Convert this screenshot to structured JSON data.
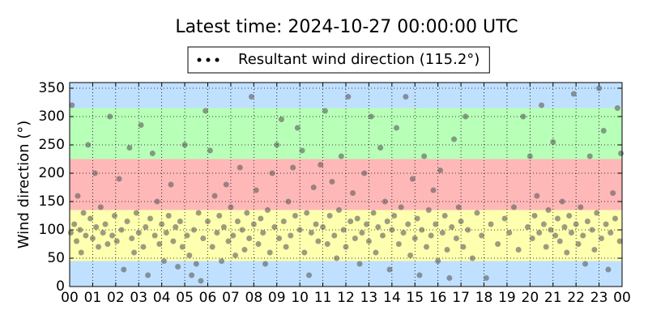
{
  "chart_data": {
    "type": "scatter",
    "title": "Latest time: 2024-10-27 00:00:00 UTC",
    "y_label": "Wind direction (°)",
    "legend": "upper center",
    "grid": true,
    "xlim": [
      0,
      24
    ],
    "ylim": [
      0,
      360
    ],
    "xticks": [
      {
        "value": 0,
        "label": "00"
      },
      {
        "value": 1,
        "label": "01"
      },
      {
        "value": 2,
        "label": "02"
      },
      {
        "value": 3,
        "label": "03"
      },
      {
        "value": 4,
        "label": "04"
      },
      {
        "value": 5,
        "label": "05"
      },
      {
        "value": 6,
        "label": "06"
      },
      {
        "value": 7,
        "label": "07"
      },
      {
        "value": 8,
        "label": "08"
      },
      {
        "value": 9,
        "label": "09"
      },
      {
        "value": 10,
        "label": "10"
      },
      {
        "value": 11,
        "label": "11"
      },
      {
        "value": 12,
        "label": "12"
      },
      {
        "value": 13,
        "label": "13"
      },
      {
        "value": 14,
        "label": "14"
      },
      {
        "value": 15,
        "label": "15"
      },
      {
        "value": 16,
        "label": "16"
      },
      {
        "value": 17,
        "label": "17"
      },
      {
        "value": 18,
        "label": "18"
      },
      {
        "value": 19,
        "label": "19"
      },
      {
        "value": 20,
        "label": "20"
      },
      {
        "value": 21,
        "label": "21"
      },
      {
        "value": 22,
        "label": "22"
      },
      {
        "value": 23,
        "label": "23"
      },
      {
        "value": 24,
        "label": "00"
      }
    ],
    "yticks": [
      0,
      50,
      100,
      150,
      200,
      250,
      300,
      350
    ],
    "bands": [
      {
        "from": 0,
        "to": 45,
        "color": "#c0e0ff"
      },
      {
        "from": 45,
        "to": 135,
        "color": "#ffffb0"
      },
      {
        "from": 135,
        "to": 225,
        "color": "#ffb8b8"
      },
      {
        "from": 225,
        "to": 315,
        "color": "#b8ffb8"
      },
      {
        "from": 315,
        "to": 360,
        "color": "#c0e0ff"
      }
    ],
    "series": [
      {
        "name": "Resultant wind direction (115.2°)",
        "color": "#5a5a5a",
        "x": [
          0.05,
          0.1,
          0.2,
          0.3,
          0.35,
          0.45,
          0.5,
          0.6,
          0.7,
          0.8,
          0.9,
          1.0,
          1.1,
          1.15,
          1.25,
          1.35,
          1.45,
          1.55,
          1.65,
          1.75,
          1.85,
          1.95,
          2.05,
          2.15,
          2.25,
          2.35,
          2.5,
          2.6,
          2.7,
          2.8,
          2.9,
          3.0,
          3.1,
          3.2,
          3.3,
          3.4,
          3.5,
          3.6,
          3.7,
          3.8,
          3.9,
          4.0,
          4.1,
          4.2,
          4.3,
          4.4,
          4.5,
          4.6,
          4.7,
          4.8,
          4.9,
          5.0,
          5.1,
          5.2,
          5.3,
          5.4,
          5.5,
          5.6,
          5.7,
          5.8,
          5.9,
          6.0,
          6.1,
          6.2,
          6.3,
          6.4,
          6.5,
          6.6,
          6.7,
          6.8,
          6.9,
          7.0,
          7.1,
          7.2,
          7.3,
          7.4,
          7.5,
          7.6,
          7.7,
          7.8,
          7.9,
          8.0,
          8.1,
          8.2,
          8.3,
          8.4,
          8.5,
          8.6,
          8.7,
          8.8,
          8.9,
          9.0,
          9.1,
          9.2,
          9.3,
          9.4,
          9.5,
          9.6,
          9.7,
          9.8,
          9.9,
          10.0,
          10.1,
          10.2,
          10.3,
          10.4,
          10.5,
          10.6,
          10.7,
          10.8,
          10.9,
          11.0,
          11.1,
          11.2,
          11.3,
          11.4,
          11.5,
          11.6,
          11.7,
          11.8,
          11.9,
          12.0,
          12.1,
          12.2,
          12.3,
          12.4,
          12.5,
          12.6,
          12.7,
          12.8,
          12.9,
          13.0,
          13.1,
          13.2,
          13.3,
          13.4,
          13.5,
          13.6,
          13.7,
          13.8,
          13.9,
          14.0,
          14.1,
          14.2,
          14.3,
          14.4,
          14.5,
          14.6,
          14.7,
          14.8,
          14.9,
          15.0,
          15.1,
          15.2,
          15.3,
          15.4,
          15.5,
          15.6,
          15.7,
          15.8,
          15.9,
          16.0,
          16.1,
          16.2,
          16.3,
          16.4,
          16.5,
          16.6,
          16.7,
          16.8,
          16.9,
          17.0,
          17.1,
          17.2,
          17.3,
          17.5,
          17.7,
          17.9,
          18.1,
          18.3,
          18.6,
          18.9,
          19.1,
          19.3,
          19.5,
          19.7,
          19.9,
          20.0,
          20.1,
          20.2,
          20.3,
          20.4,
          20.5,
          20.6,
          20.7,
          20.8,
          20.9,
          21.0,
          21.1,
          21.2,
          21.3,
          21.4,
          21.5,
          21.6,
          21.7,
          21.8,
          21.9,
          22.0,
          22.1,
          22.2,
          22.3,
          22.4,
          22.5,
          22.6,
          22.7,
          22.8,
          22.9,
          23.0,
          23.1,
          23.2,
          23.3,
          23.4,
          23.5,
          23.6,
          23.7,
          23.8,
          23.9,
          23.95
        ],
        "values": [
          95,
          320,
          110,
          80,
          160,
          100,
          60,
          130,
          90,
          250,
          120,
          85,
          200,
          105,
          70,
          140,
          95,
          110,
          75,
          300,
          90,
          125,
          80,
          190,
          100,
          30,
          115,
          245,
          85,
          60,
          130,
          95,
          285,
          70,
          105,
          20,
          120,
          235,
          90,
          150,
          75,
          110,
          45,
          95,
          125,
          180,
          80,
          105,
          35,
          115,
          70,
          250,
          90,
          55,
          20,
          100,
          40,
          130,
          10,
          85,
          310,
          115,
          240,
          70,
          160,
          95,
          125,
          45,
          105,
          180,
          80,
          140,
          90,
          55,
          115,
          210,
          100,
          65,
          130,
          85,
          335,
          110,
          170,
          75,
          120,
          95,
          40,
          135,
          60,
          200,
          105,
          250,
          85,
          295,
          115,
          70,
          150,
          90,
          210,
          125,
          280,
          100,
          240,
          60,
          130,
          20,
          95,
          175,
          110,
          80,
          215,
          105,
          310,
          75,
          125,
          185,
          90,
          50,
          135,
          230,
          100,
          70,
          335,
          115,
          165,
          85,
          120,
          40,
          95,
          200,
          110,
          80,
          300,
          130,
          60,
          105,
          245,
          90,
          150,
          115,
          30,
          100,
          125,
          280,
          75,
          140,
          95,
          335,
          110,
          55,
          190,
          85,
          120,
          20,
          100,
          230,
          70,
          135,
          90,
          170,
          110,
          45,
          205,
          95,
          125,
          65,
          15,
          105,
          260,
          85,
          140,
          115,
          70,
          300,
          100,
          50,
          130,
          90,
          15,
          110,
          75,
          120,
          95,
          140,
          65,
          300,
          105,
          230,
          85,
          125,
          160,
          95,
          320,
          110,
          70,
          135,
          100,
          255,
          90,
          120,
          80,
          150,
          105,
          60,
          125,
          95,
          340,
          110,
          75,
          140,
          90,
          40,
          115,
          230,
          100,
          65,
          130,
          350,
          85,
          275,
          110,
          30,
          95,
          165,
          120,
          315,
          80,
          235
        ]
      }
    ]
  }
}
